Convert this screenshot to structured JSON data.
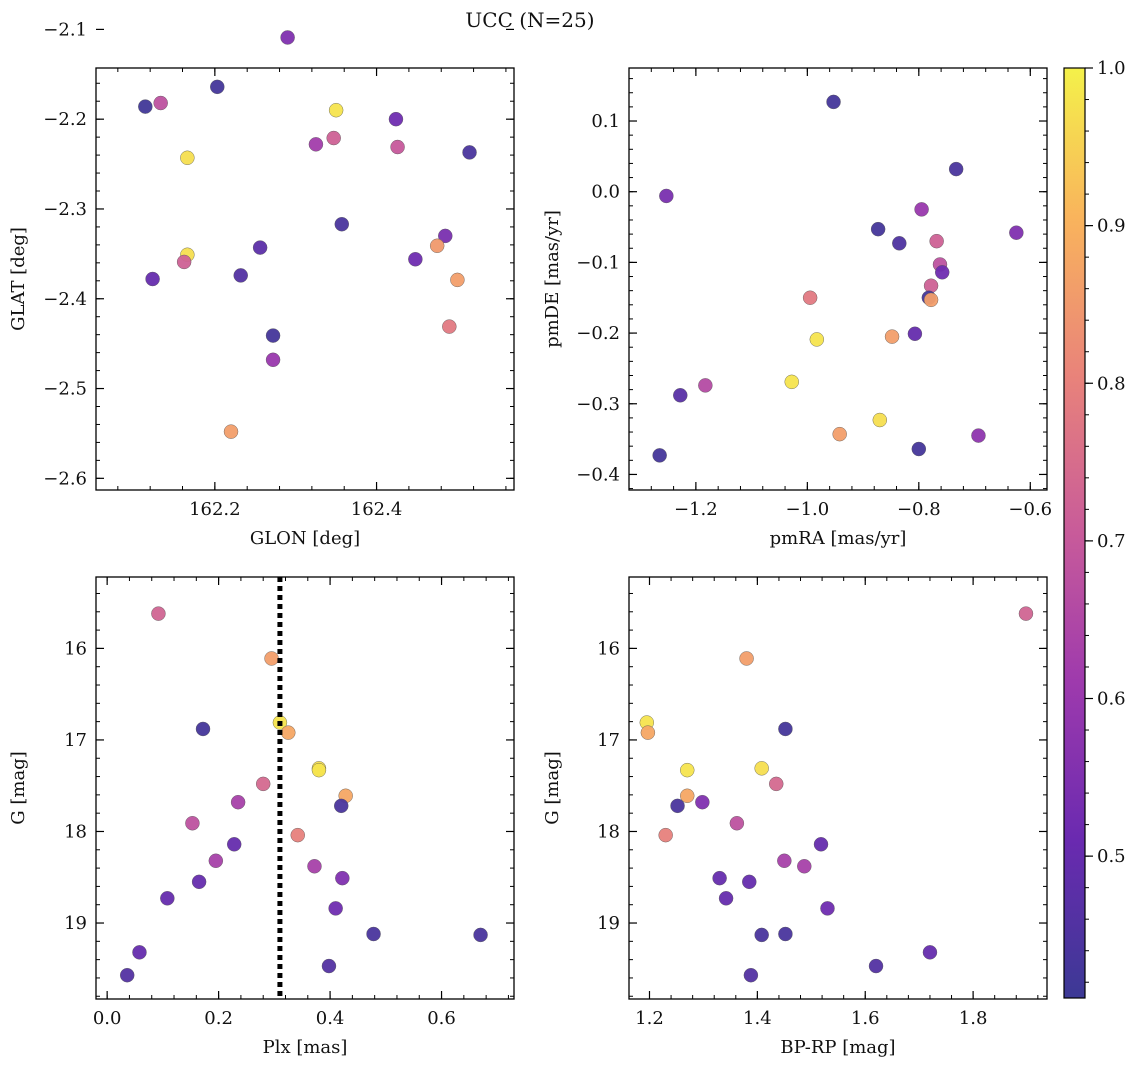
{
  "figure_title": "UCC (N=25)",
  "colorbar": {
    "colormap": "plasma",
    "range": [
      0.41,
      1.0
    ],
    "ticks": [
      0.5,
      0.6,
      0.7,
      0.8,
      0.9,
      1.0
    ],
    "tick_labels": [
      "0.5",
      "0.6",
      "0.7",
      "0.8",
      "0.9",
      "1.0"
    ]
  },
  "chart_data": [
    {
      "type": "scatter",
      "xlabel": "GLON [deg]",
      "ylabel": "GLAT [deg]",
      "xlim": [
        162.053,
        162.57
      ],
      "ylim": [
        -2.613,
        -2.143
      ],
      "xticks": [
        162.2,
        162.4
      ],
      "xtick_labels": [
        "162.2",
        "162.4"
      ],
      "yticks": [
        -2.6,
        -2.5,
        -2.4,
        -2.3,
        -2.2,
        -2.1
      ],
      "ytick_labels": [
        "−2.6",
        "−2.5",
        "−2.4",
        "−2.3",
        "−2.2",
        "−2.1"
      ],
      "points": [
        {
          "x": 162.114,
          "y": -2.186,
          "c": 0.42
        },
        {
          "x": 162.133,
          "y": -2.182,
          "c": 0.68
        },
        {
          "x": 162.203,
          "y": -2.164,
          "c": 0.43
        },
        {
          "x": 162.29,
          "y": -2.109,
          "c": 0.55
        },
        {
          "x": 162.166,
          "y": -2.243,
          "c": 0.97
        },
        {
          "x": 162.35,
          "y": -2.19,
          "c": 0.98
        },
        {
          "x": 162.325,
          "y": -2.228,
          "c": 0.62
        },
        {
          "x": 162.347,
          "y": -2.221,
          "c": 0.72
        },
        {
          "x": 162.424,
          "y": -2.2,
          "c": 0.52
        },
        {
          "x": 162.426,
          "y": -2.231,
          "c": 0.7
        },
        {
          "x": 162.515,
          "y": -2.237,
          "c": 0.44
        },
        {
          "x": 162.357,
          "y": -2.317,
          "c": 0.44
        },
        {
          "x": 162.256,
          "y": -2.343,
          "c": 0.48
        },
        {
          "x": 162.166,
          "y": -2.351,
          "c": 0.97
        },
        {
          "x": 162.162,
          "y": -2.359,
          "c": 0.72
        },
        {
          "x": 162.123,
          "y": -2.378,
          "c": 0.5
        },
        {
          "x": 162.232,
          "y": -2.374,
          "c": 0.46
        },
        {
          "x": 162.485,
          "y": -2.33,
          "c": 0.54
        },
        {
          "x": 162.475,
          "y": -2.341,
          "c": 0.85
        },
        {
          "x": 162.448,
          "y": -2.356,
          "c": 0.52
        },
        {
          "x": 162.5,
          "y": -2.379,
          "c": 0.86
        },
        {
          "x": 162.49,
          "y": -2.431,
          "c": 0.78
        },
        {
          "x": 162.272,
          "y": -2.441,
          "c": 0.43
        },
        {
          "x": 162.272,
          "y": -2.468,
          "c": 0.6
        },
        {
          "x": 162.22,
          "y": -2.548,
          "c": 0.86
        }
      ]
    },
    {
      "type": "scatter",
      "xlabel": "pmRA [mas/yr]",
      "ylabel": "pmDE [mas/yr]",
      "xlim": [
        -1.32,
        -0.57
      ],
      "ylim": [
        -0.422,
        0.175
      ],
      "xticks": [
        -1.2,
        -1.0,
        -0.8,
        -0.6
      ],
      "xtick_labels": [
        "−1.2",
        "−1.0",
        "−0.8",
        "−0.6"
      ],
      "yticks": [
        -0.4,
        -0.3,
        -0.2,
        -0.1,
        0.0,
        0.1
      ],
      "ytick_labels": [
        "−0.4",
        "−0.3",
        "−0.2",
        "−0.1",
        "0.0",
        "0.1"
      ],
      "points": [
        {
          "x": -0.953,
          "y": 0.127,
          "c": 0.43
        },
        {
          "x": -0.733,
          "y": 0.032,
          "c": 0.44
        },
        {
          "x": -1.253,
          "y": -0.006,
          "c": 0.54
        },
        {
          "x": -0.795,
          "y": -0.025,
          "c": 0.6
        },
        {
          "x": -0.873,
          "y": -0.053,
          "c": 0.43
        },
        {
          "x": -0.835,
          "y": -0.073,
          "c": 0.45
        },
        {
          "x": -0.625,
          "y": -0.058,
          "c": 0.55
        },
        {
          "x": -0.768,
          "y": -0.07,
          "c": 0.72
        },
        {
          "x": -0.762,
          "y": -0.103,
          "c": 0.68
        },
        {
          "x": -0.758,
          "y": -0.114,
          "c": 0.52
        },
        {
          "x": -0.778,
          "y": -0.133,
          "c": 0.72
        },
        {
          "x": -0.782,
          "y": -0.15,
          "c": 0.43
        },
        {
          "x": -0.778,
          "y": -0.153,
          "c": 0.86
        },
        {
          "x": -0.995,
          "y": -0.15,
          "c": 0.78
        },
        {
          "x": -0.983,
          "y": -0.209,
          "c": 0.98
        },
        {
          "x": -0.848,
          "y": -0.205,
          "c": 0.86
        },
        {
          "x": -0.807,
          "y": -0.201,
          "c": 0.5
        },
        {
          "x": -1.183,
          "y": -0.274,
          "c": 0.66
        },
        {
          "x": -1.028,
          "y": -0.269,
          "c": 0.98
        },
        {
          "x": -1.228,
          "y": -0.288,
          "c": 0.47
        },
        {
          "x": -0.87,
          "y": -0.323,
          "c": 0.97
        },
        {
          "x": -0.942,
          "y": -0.343,
          "c": 0.86
        },
        {
          "x": -0.693,
          "y": -0.345,
          "c": 0.58
        },
        {
          "x": -0.8,
          "y": -0.364,
          "c": 0.43
        },
        {
          "x": -1.265,
          "y": -0.373,
          "c": 0.43
        }
      ]
    },
    {
      "type": "scatter",
      "xlabel": "Plx [mas]",
      "ylabel": "G [mag]",
      "xlim": [
        -0.02,
        0.73
      ],
      "ylim": [
        19.83,
        15.22
      ],
      "xticks": [
        0.0,
        0.2,
        0.4,
        0.6
      ],
      "xtick_labels": [
        "0.0",
        "0.2",
        "0.4",
        "0.6"
      ],
      "yticks": [
        16,
        17,
        18,
        19
      ],
      "ytick_labels": [
        "16",
        "17",
        "18",
        "19"
      ],
      "vline": 0.31,
      "points": [
        {
          "x": 0.092,
          "y": 15.62,
          "c": 0.73
        },
        {
          "x": 0.295,
          "y": 16.11,
          "c": 0.86
        },
        {
          "x": 0.172,
          "y": 16.88,
          "c": 0.43
        },
        {
          "x": 0.31,
          "y": 16.81,
          "c": 0.98
        },
        {
          "x": 0.325,
          "y": 16.92,
          "c": 0.88
        },
        {
          "x": 0.38,
          "y": 17.31,
          "c": 0.97
        },
        {
          "x": 0.38,
          "y": 17.33,
          "c": 0.98
        },
        {
          "x": 0.428,
          "y": 17.61,
          "c": 0.88
        },
        {
          "x": 0.42,
          "y": 17.72,
          "c": 0.44
        },
        {
          "x": 0.28,
          "y": 17.48,
          "c": 0.74
        },
        {
          "x": 0.235,
          "y": 17.68,
          "c": 0.63
        },
        {
          "x": 0.153,
          "y": 17.91,
          "c": 0.68
        },
        {
          "x": 0.342,
          "y": 18.04,
          "c": 0.8
        },
        {
          "x": 0.228,
          "y": 18.14,
          "c": 0.5
        },
        {
          "x": 0.195,
          "y": 18.32,
          "c": 0.63
        },
        {
          "x": 0.372,
          "y": 18.38,
          "c": 0.63
        },
        {
          "x": 0.422,
          "y": 18.51,
          "c": 0.55
        },
        {
          "x": 0.165,
          "y": 18.55,
          "c": 0.5
        },
        {
          "x": 0.108,
          "y": 18.73,
          "c": 0.5
        },
        {
          "x": 0.41,
          "y": 18.84,
          "c": 0.52
        },
        {
          "x": 0.478,
          "y": 19.12,
          "c": 0.44
        },
        {
          "x": 0.67,
          "y": 19.13,
          "c": 0.44
        },
        {
          "x": 0.058,
          "y": 19.32,
          "c": 0.5
        },
        {
          "x": 0.398,
          "y": 19.47,
          "c": 0.46
        },
        {
          "x": 0.036,
          "y": 19.57,
          "c": 0.46
        }
      ]
    },
    {
      "type": "scatter",
      "xlabel": "BP-RP [mag]",
      "ylabel": "G [mag]",
      "xlim": [
        1.162,
        1.937
      ],
      "ylim": [
        19.83,
        15.22
      ],
      "xticks": [
        1.2,
        1.4,
        1.6,
        1.8
      ],
      "xtick_labels": [
        "1.2",
        "1.4",
        "1.6",
        "1.8"
      ],
      "yticks": [
        16,
        17,
        18,
        19
      ],
      "ytick_labels": [
        "16",
        "17",
        "18",
        "19"
      ],
      "points": [
        {
          "x": 1.898,
          "y": 15.62,
          "c": 0.73
        },
        {
          "x": 1.38,
          "y": 16.11,
          "c": 0.86
        },
        {
          "x": 1.195,
          "y": 16.81,
          "c": 0.98
        },
        {
          "x": 1.197,
          "y": 16.92,
          "c": 0.88
        },
        {
          "x": 1.452,
          "y": 16.88,
          "c": 0.43
        },
        {
          "x": 1.27,
          "y": 17.33,
          "c": 0.98
        },
        {
          "x": 1.408,
          "y": 17.31,
          "c": 0.97
        },
        {
          "x": 1.27,
          "y": 17.61,
          "c": 0.88
        },
        {
          "x": 1.435,
          "y": 17.48,
          "c": 0.74
        },
        {
          "x": 1.298,
          "y": 17.68,
          "c": 0.55
        },
        {
          "x": 1.252,
          "y": 17.72,
          "c": 0.44
        },
        {
          "x": 1.362,
          "y": 17.91,
          "c": 0.68
        },
        {
          "x": 1.23,
          "y": 18.04,
          "c": 0.8
        },
        {
          "x": 1.518,
          "y": 18.14,
          "c": 0.5
        },
        {
          "x": 1.45,
          "y": 18.32,
          "c": 0.63
        },
        {
          "x": 1.487,
          "y": 18.38,
          "c": 0.63
        },
        {
          "x": 1.33,
          "y": 18.51,
          "c": 0.5
        },
        {
          "x": 1.385,
          "y": 18.55,
          "c": 0.5
        },
        {
          "x": 1.342,
          "y": 18.73,
          "c": 0.5
        },
        {
          "x": 1.53,
          "y": 18.84,
          "c": 0.52
        },
        {
          "x": 1.408,
          "y": 19.13,
          "c": 0.44
        },
        {
          "x": 1.452,
          "y": 19.12,
          "c": 0.44
        },
        {
          "x": 1.72,
          "y": 19.32,
          "c": 0.5
        },
        {
          "x": 1.62,
          "y": 19.47,
          "c": 0.46
        },
        {
          "x": 1.388,
          "y": 19.57,
          "c": 0.46
        }
      ]
    }
  ]
}
